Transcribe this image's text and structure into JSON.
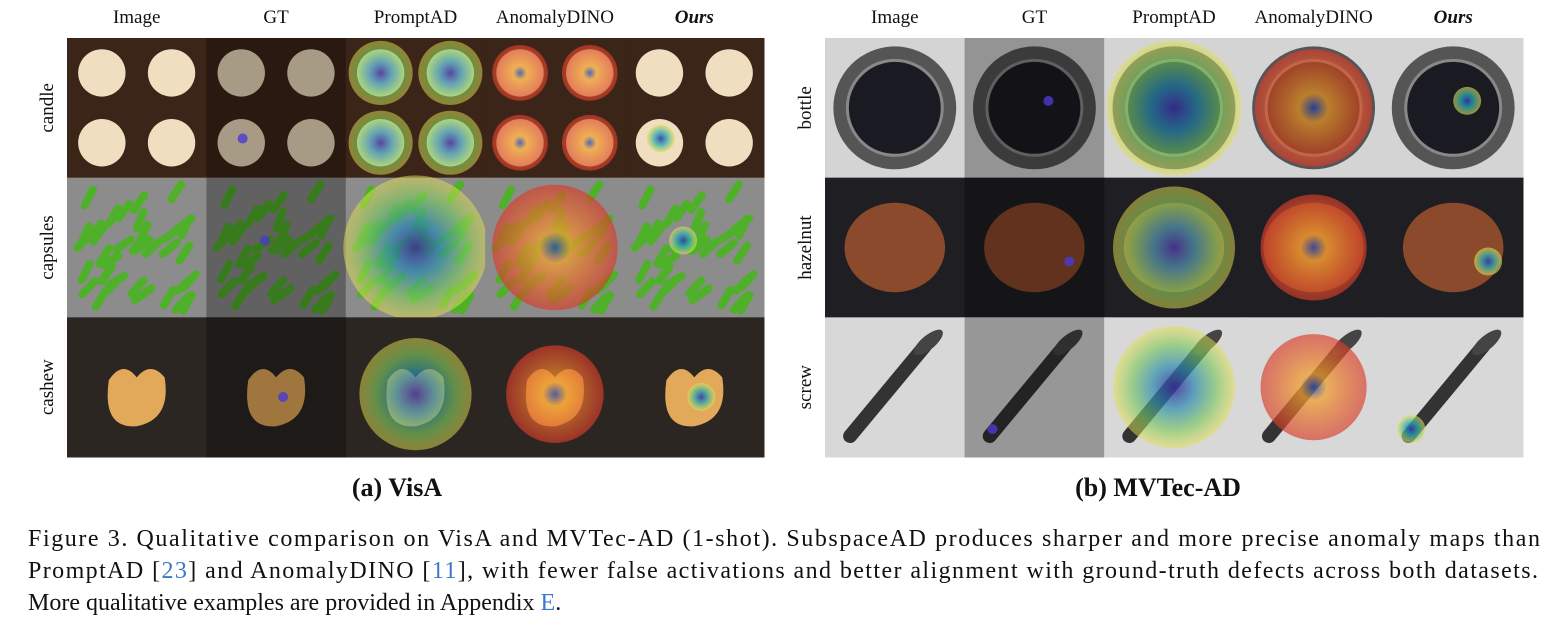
{
  "panels": [
    {
      "columns": [
        "Image",
        "GT",
        "PromptAD",
        "AnomalyDINO",
        "Ours"
      ],
      "rows": [
        "candle",
        "capsules",
        "cashew"
      ],
      "label": "(a) VisA"
    },
    {
      "columns": [
        "Image",
        "GT",
        "PromptAD",
        "AnomalyDINO",
        "Ours"
      ],
      "rows": [
        "bottle",
        "hazelnut",
        "screw"
      ],
      "label": "(b) MVTec-AD"
    }
  ],
  "caption": {
    "lines": [
      [
        "Figure 3. Qualitative comparison on VisA and MVTec-AD (1-shot). SubspaceAD produces sharper and more precise anomaly maps than"
      ],
      [
        "PromptAD [",
        "23",
        "] and AnomalyDINO [",
        "11",
        "], with fewer false activations and better alignment with ground-truth defects across both datasets."
      ],
      [
        "More qualitative examples are provided in Appendix ",
        "E",
        "."
      ]
    ]
  }
}
